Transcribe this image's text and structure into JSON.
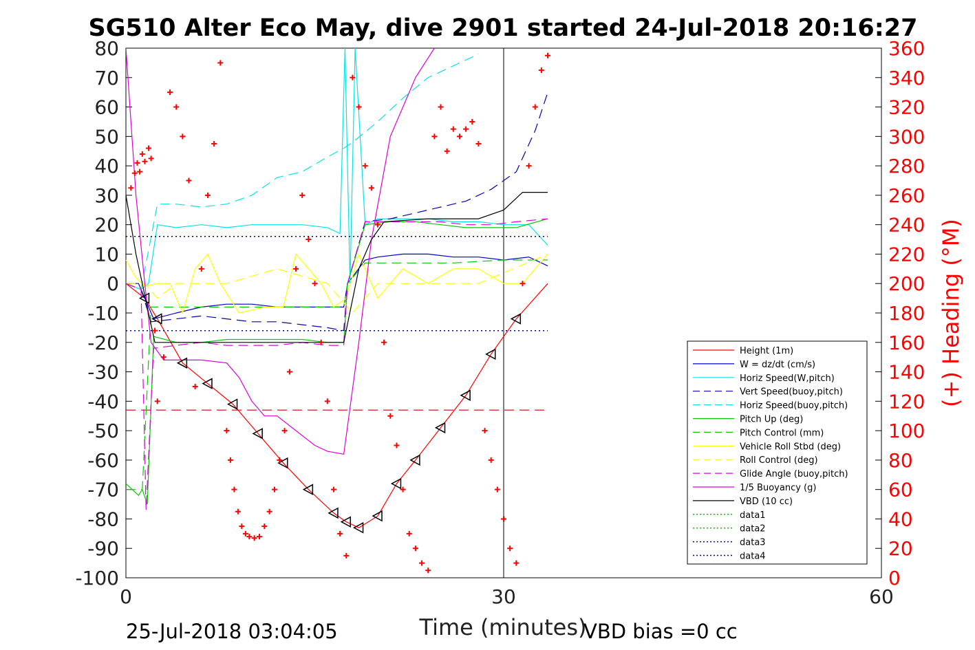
{
  "chart_data": {
    "type": "line",
    "title": "SG510 Alter Eco May, dive 2901 started 24-Jul-2018 20:16:27",
    "xlabel": "Time (minutes)",
    "ylabel_right": "(+) Heading (°M)",
    "xlim": [
      0,
      60
    ],
    "ylim_left": [
      -100,
      80
    ],
    "ylim_right": [
      0,
      360
    ],
    "x_ticks": [
      0,
      30,
      60
    ],
    "y_ticks_left": [
      80,
      70,
      60,
      50,
      40,
      30,
      20,
      10,
      0,
      -10,
      -20,
      -30,
      -40,
      -50,
      -60,
      -70,
      -80,
      -90,
      -100
    ],
    "y_ticks_right": [
      360,
      340,
      320,
      300,
      280,
      260,
      240,
      220,
      200,
      180,
      160,
      140,
      120,
      100,
      80,
      60,
      40,
      20,
      0
    ],
    "grid": false,
    "legend_position": "lower-right",
    "footer_left": "25-Jul-2018 03:04:05",
    "footer_right": "VBD bias =0 cc",
    "series": [
      {
        "name": "Height (1m)",
        "color": "#ff0000",
        "dash": "solid",
        "x": [
          0,
          1.5,
          2.5,
          4.5,
          6.5,
          8.5,
          10.5,
          12.5,
          14.5,
          16.5,
          17.5,
          18.5,
          20,
          21.5,
          23,
          25,
          27,
          29,
          31,
          33.5
        ],
        "y": [
          0,
          -5,
          -12,
          -27,
          -34,
          -41,
          -51,
          -61,
          -70,
          -78,
          -81,
          -83,
          -79,
          -68,
          -60,
          -49,
          -38,
          -24,
          -12,
          0
        ]
      },
      {
        "name": "W = dz/dt (cm/s)",
        "color": "#0000cc",
        "dash": "solid",
        "x": [
          0,
          1.0,
          1.6,
          2.2,
          4,
          6,
          8,
          10,
          12,
          14,
          16,
          17.3,
          17.6,
          19,
          20,
          22,
          24,
          26,
          28,
          30,
          32,
          33.5
        ],
        "y": [
          0,
          0,
          -6,
          -12,
          -10,
          -8,
          -7,
          -7,
          -8,
          -8,
          -8,
          -8,
          0,
          8,
          9,
          10,
          10,
          9,
          9,
          8,
          9,
          6
        ]
      },
      {
        "name": "Horiz Speed(W,pitch)",
        "color": "#00e6e6",
        "dash": "solid",
        "x": [
          0,
          1.2,
          1.8,
          2.5,
          4,
          6,
          8,
          10,
          12,
          14,
          16,
          17,
          17.4,
          17.8,
          18.2,
          19,
          20,
          22,
          24,
          26,
          28,
          30,
          32,
          33.5
        ],
        "y": [
          0,
          -2,
          0,
          20,
          19,
          20,
          19,
          20,
          20,
          20,
          19,
          17,
          80,
          0,
          80,
          20,
          22,
          22,
          22,
          21,
          21,
          20,
          20,
          13
        ]
      },
      {
        "name": "Vert Speed(buoy,pitch)",
        "color": "#0000aa",
        "dash": "dashed",
        "x": [
          0,
          1.2,
          2,
          4,
          6,
          8,
          10,
          12,
          14,
          16,
          17.3,
          17.6,
          19,
          21,
          23,
          25,
          27,
          29,
          31,
          32.5,
          33.5
        ],
        "y": [
          0,
          -2,
          -13,
          -12,
          -11,
          -12,
          -13,
          -13,
          -14,
          -15,
          -16,
          0,
          21,
          22,
          24,
          26,
          28,
          32,
          38,
          52,
          65
        ]
      },
      {
        "name": "Horiz Speed(buoy,pitch)",
        "color": "#00e6e6",
        "dash": "dashed",
        "x": [
          0,
          1.2,
          2.5,
          4,
          6,
          8,
          10,
          12,
          14,
          16,
          17.3,
          18,
          20,
          22,
          24,
          26,
          28
        ],
        "y": [
          0,
          -2,
          27,
          27,
          26,
          27,
          30,
          36,
          38,
          43,
          46,
          48,
          55,
          63,
          70,
          74,
          78
        ]
      },
      {
        "name": "Pitch Up (deg)",
        "color": "#00cc00",
        "dash": "solid",
        "x": [
          0,
          1.0,
          1.3,
          1.7,
          2.2,
          4,
          6,
          8,
          10,
          12,
          14,
          16,
          17.3,
          17.6,
          19,
          21,
          23,
          25,
          27,
          29,
          31,
          33.5
        ],
        "y": [
          -68,
          -72,
          -70,
          -75,
          -18,
          -20,
          -20,
          -19,
          -19,
          -19,
          -19,
          -20,
          -20,
          0,
          20,
          21,
          21,
          20,
          19,
          19,
          19,
          22
        ]
      },
      {
        "name": "Pitch Control (mm)",
        "color": "#00cc00",
        "dash": "dashed",
        "x": [
          0,
          1.0,
          1.3,
          2,
          4,
          8,
          12,
          17.3,
          17.6,
          19,
          22,
          26,
          30,
          33.5
        ],
        "y": [
          -70,
          -70,
          -70,
          -8,
          -8,
          -8,
          -8,
          -8,
          0,
          7,
          7,
          7,
          8,
          8
        ]
      },
      {
        "name": "Vehicle Roll Stbd (deg)",
        "color": "#ffff00",
        "dash": "solid",
        "x": [
          0,
          0.8,
          1.5,
          2.5,
          3.5,
          4.5,
          5.5,
          6.5,
          7.5,
          9,
          11,
          12.5,
          13.5,
          14.5,
          15.5,
          16.5,
          17.5,
          18.5,
          20,
          22,
          24,
          26,
          28,
          30,
          31.5,
          33.5
        ],
        "y": [
          8,
          2,
          -1,
          0,
          0,
          -10,
          5,
          10,
          0,
          -10,
          -8,
          -8,
          10,
          5,
          0,
          -8,
          -5,
          10,
          -5,
          5,
          0,
          5,
          5,
          0,
          0,
          10
        ]
      },
      {
        "name": "Roll Control (deg)",
        "color": "#ffff00",
        "dash": "dashed",
        "x": [
          0,
          1.5,
          2.5,
          4,
          8,
          12,
          16,
          18,
          20,
          24,
          28,
          33.5
        ],
        "y": [
          0,
          0,
          -5,
          0,
          0,
          5,
          0,
          -10,
          0,
          0,
          0,
          10
        ]
      },
      {
        "name": "Glide Angle (buoy,pitch)",
        "color": "#dd00dd",
        "dash": "dashed",
        "x": [
          0,
          1.2,
          1.6,
          2.2,
          4,
          6,
          8,
          10,
          12,
          14,
          16,
          17.3,
          17.6,
          19,
          21,
          23,
          25,
          27,
          29,
          31,
          33.5
        ],
        "y": [
          0,
          -2,
          -77,
          -22,
          -21,
          -20,
          -21,
          -21,
          -21,
          -20,
          -21,
          -21,
          0,
          21,
          21,
          21,
          21,
          20,
          20,
          21,
          22
        ]
      },
      {
        "name": "1/5 Buoyancy (g)",
        "color": "#dd00dd",
        "dash": "solid",
        "x": [
          0,
          0.8,
          1.5,
          2,
          3,
          6,
          8,
          9,
          10,
          11,
          12,
          13.5,
          15,
          16,
          17.3,
          18.5,
          19.5,
          21,
          23,
          24.5
        ],
        "y": [
          80,
          30,
          0,
          -20,
          -26,
          -26,
          -27,
          -32,
          -40,
          -45,
          -45,
          -50,
          -55,
          -57,
          -58,
          -20,
          15,
          50,
          70,
          80
        ]
      },
      {
        "name": "VBD (10 cc)",
        "color": "#000000",
        "dash": "solid",
        "x": [
          0,
          0.8,
          1.3,
          1.8,
          2.3,
          10,
          17.3,
          18.5,
          19.5,
          20.5,
          24,
          28,
          30,
          31.5,
          33.5
        ],
        "y": [
          30,
          10,
          0,
          -10,
          -20,
          -20,
          -20,
          5,
          15,
          21,
          22,
          22,
          25,
          31,
          31
        ]
      },
      {
        "name": "data1",
        "color": "#00cc00",
        "dash": "dotted",
        "x": [],
        "y": []
      },
      {
        "name": "data2",
        "color": "#00cc00",
        "dash": "dotted",
        "x": [],
        "y": []
      },
      {
        "name": "data3",
        "color": "#00008b",
        "dash": "dotted",
        "x": [
          0,
          33.5
        ],
        "y": [
          16,
          16
        ]
      },
      {
        "name": "data4",
        "color": "#00008b",
        "dash": "dotted",
        "x": [
          0,
          33.5
        ],
        "y": [
          -16,
          -16
        ]
      }
    ],
    "extra_lines": [
      {
        "color": "#cc0000",
        "dash": "dashed",
        "x": [
          0,
          33.5
        ],
        "y": [
          -43,
          -43
        ]
      }
    ],
    "heading": {
      "color": "#ff0000",
      "x": [
        0.4,
        0.7,
        0.9,
        1.1,
        1.3,
        1.5,
        1.8,
        2.0,
        2.3,
        2.5,
        3.0,
        3.5,
        4.0,
        4.5,
        5.0,
        5.5,
        6.0,
        6.5,
        7.0,
        7.5,
        8.0,
        8.3,
        8.6,
        8.9,
        9.2,
        9.5,
        9.8,
        10.2,
        10.6,
        11.0,
        11.4,
        11.8,
        12.2,
        12.6,
        13.0,
        13.5,
        14.0,
        14.5,
        15.0,
        15.5,
        16.0,
        16.5,
        17.0,
        17.5,
        18.0,
        18.5,
        19.0,
        19.5,
        20.0,
        20.5,
        21.0,
        21.5,
        22.0,
        22.5,
        23.0,
        23.5,
        24.0,
        24.5,
        25.0,
        25.5,
        26.0,
        26.5,
        27.0,
        27.5,
        28.0,
        28.5,
        29.0,
        29.5,
        30.0,
        30.5,
        31.0,
        31.5,
        32.0,
        32.5,
        33.0,
        33.5
      ],
      "y": [
        265,
        275,
        282,
        276,
        288,
        283,
        292,
        285,
        168,
        120,
        150,
        330,
        320,
        300,
        270,
        130,
        210,
        260,
        295,
        350,
        100,
        80,
        60,
        45,
        35,
        30,
        28,
        27,
        28,
        35,
        45,
        60,
        80,
        100,
        140,
        210,
        260,
        230,
        200,
        160,
        120,
        60,
        30,
        15,
        340,
        320,
        280,
        265,
        240,
        160,
        110,
        90,
        60,
        30,
        20,
        10,
        5,
        300,
        320,
        290,
        305,
        300,
        305,
        310,
        295,
        100,
        80,
        60,
        40,
        20,
        10,
        200,
        280,
        320,
        345,
        355
      ]
    }
  }
}
